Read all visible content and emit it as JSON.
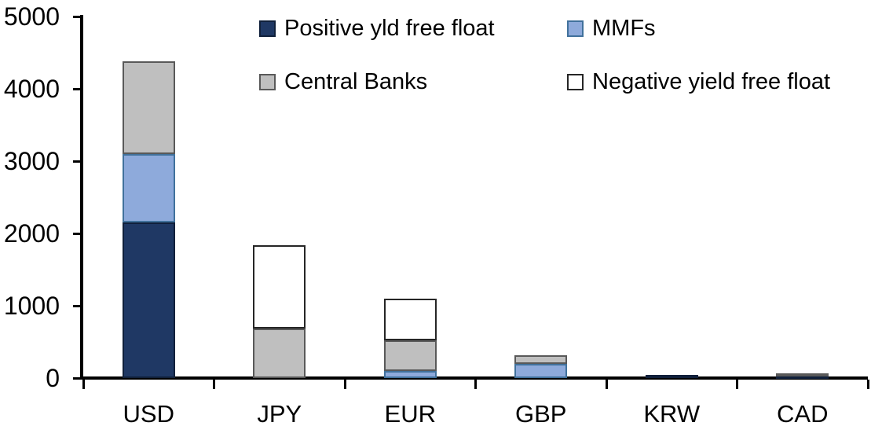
{
  "chart_data": {
    "type": "bar",
    "stacked": true,
    "title": "",
    "xlabel": "",
    "ylabel": "",
    "categories": [
      "USD",
      "JPY",
      "EUR",
      "GBP",
      "KRW",
      "CAD"
    ],
    "series": [
      {
        "name": "Positive yld free float",
        "color": "#1F3864",
        "border": "#10203B",
        "values": [
          2150,
          0,
          0,
          0,
          40,
          30
        ]
      },
      {
        "name": "MMFs",
        "color": "#8EAADB",
        "border": "#41719C",
        "values": [
          950,
          0,
          100,
          200,
          0,
          0
        ]
      },
      {
        "name": "Central Banks",
        "color": "#BFBFBF",
        "border": "#595959",
        "values": [
          1280,
          690,
          425,
          120,
          0,
          30
        ]
      },
      {
        "name": "Negative yield free float",
        "color": "#FFFFFF",
        "border": "#262626",
        "values": [
          0,
          1150,
          575,
          0,
          0,
          0
        ]
      }
    ],
    "totals": [
      4380,
      1840,
      1100,
      320,
      40,
      60
    ],
    "ylim": [
      0,
      5000
    ],
    "y_ticks": [
      0,
      1000,
      2000,
      3000,
      4000,
      5000
    ],
    "grid": false,
    "legend_position": "top",
    "axis_color": "#000000",
    "background_color": "#FFFFFF"
  }
}
